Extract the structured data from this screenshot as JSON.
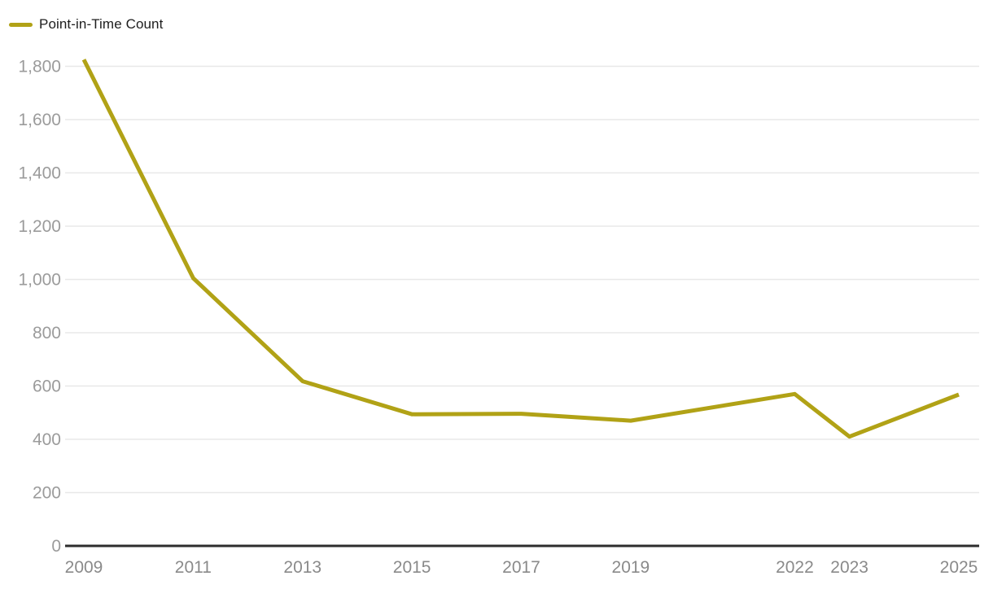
{
  "chart_data": {
    "type": "line",
    "title": "",
    "legend": "Point-in-Time Count",
    "series": [
      {
        "name": "Point-in-Time Count",
        "color": "#b1a216",
        "x": [
          2009,
          2011,
          2013,
          2015,
          2017,
          2019,
          2022,
          2023,
          2025
        ],
        "values": [
          1825,
          1005,
          618,
          494,
          496,
          470,
          570,
          410,
          568
        ]
      }
    ],
    "x_ticks": [
      2009,
      2011,
      2013,
      2015,
      2017,
      2019,
      2022,
      2023,
      2025
    ],
    "x_tick_labels": [
      "2009",
      "2011",
      "2013",
      "2015",
      "2017",
      "2019",
      "2022",
      "2023",
      "2025"
    ],
    "y_ticks": [
      0,
      200,
      400,
      600,
      800,
      1000,
      1200,
      1400,
      1600,
      1800
    ],
    "y_tick_labels": [
      "0",
      "200",
      "400",
      "600",
      "800",
      "1,000",
      "1,200",
      "1,400",
      "1,600",
      "1,800"
    ],
    "xlim": [
      2009,
      2025
    ],
    "ylim": [
      0,
      1800
    ],
    "grid": "horizontal",
    "legend_position": "top-left",
    "colors": {
      "line": "#b1a216",
      "grid": "#e8e8e8",
      "axis_baseline": "#2d2d2d",
      "y_tick_label": "#9b9b9b",
      "x_tick_label": "#8a8a8a",
      "legend_text": "#1d1d1d",
      "background": "#ffffff"
    }
  }
}
